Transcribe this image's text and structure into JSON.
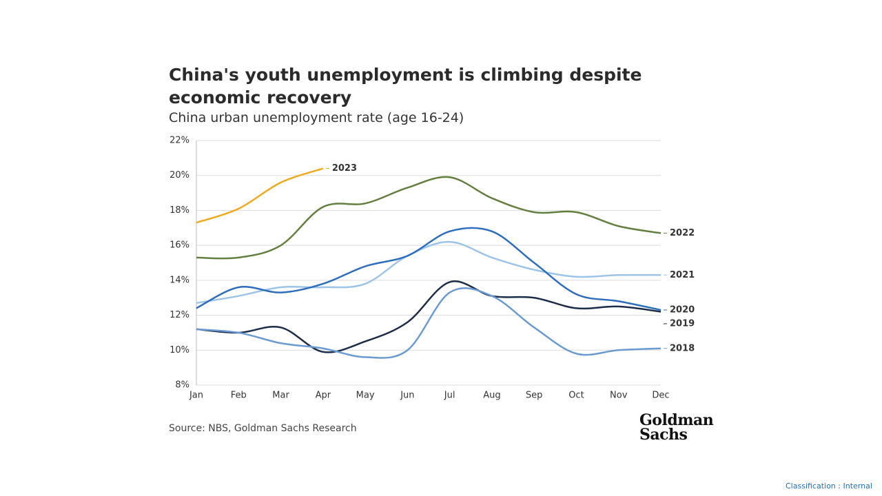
{
  "chart_data": {
    "type": "line",
    "title": "China's youth unemployment is climbing despite economic recovery",
    "subtitle": "China urban unemployment rate (age 16-24)",
    "source": "Source: NBS, Goldman Sachs Research",
    "logo": [
      "Goldman",
      "Sachs"
    ],
    "classification": "Classification : Internal",
    "categories": [
      "Jan",
      "Feb",
      "Mar",
      "Apr",
      "May",
      "Jun",
      "Jul",
      "Aug",
      "Sep",
      "Oct",
      "Nov",
      "Dec"
    ],
    "ylim": [
      8,
      22
    ],
    "yticks": [
      {
        "value": 8,
        "label": "8%"
      },
      {
        "value": 10,
        "label": "10%"
      },
      {
        "value": 12,
        "label": "12%"
      },
      {
        "value": 14,
        "label": "14%"
      },
      {
        "value": 16,
        "label": "16%"
      },
      {
        "value": 18,
        "label": "18%"
      },
      {
        "value": 20,
        "label": "20%"
      },
      {
        "value": 22,
        "label": "22%"
      }
    ],
    "grid": true,
    "series": [
      {
        "name": "2023",
        "color": "#f0a91e",
        "values": [
          17.3,
          18.1,
          19.6,
          20.4,
          null,
          null,
          null,
          null,
          null,
          null,
          null,
          null
        ]
      },
      {
        "name": "2022",
        "color": "#627f3d",
        "values": [
          15.3,
          15.3,
          16.0,
          18.2,
          18.4,
          19.3,
          19.9,
          18.7,
          17.9,
          17.9,
          17.1,
          16.7
        ]
      },
      {
        "name": "2021",
        "color": "#9cc4e8",
        "values": [
          12.7,
          13.1,
          13.6,
          13.6,
          13.8,
          15.4,
          16.2,
          15.3,
          14.6,
          14.2,
          14.3,
          14.3
        ]
      },
      {
        "name": "2020",
        "color": "#2c6dbd",
        "values": [
          12.4,
          13.6,
          13.3,
          13.8,
          14.8,
          15.4,
          16.8,
          16.8,
          15.0,
          13.2,
          12.8,
          12.3
        ]
      },
      {
        "name": "2019",
        "color": "#1b2d48",
        "values": [
          11.2,
          11.0,
          11.3,
          9.9,
          10.5,
          11.6,
          13.9,
          13.1,
          13.0,
          12.4,
          12.5,
          12.2
        ]
      },
      {
        "name": "2018",
        "color": "#6a9ad2",
        "values": [
          11.2,
          11.0,
          10.4,
          10.1,
          9.6,
          10.0,
          13.3,
          13.1,
          11.3,
          9.8,
          10.0,
          10.1
        ]
      }
    ]
  }
}
